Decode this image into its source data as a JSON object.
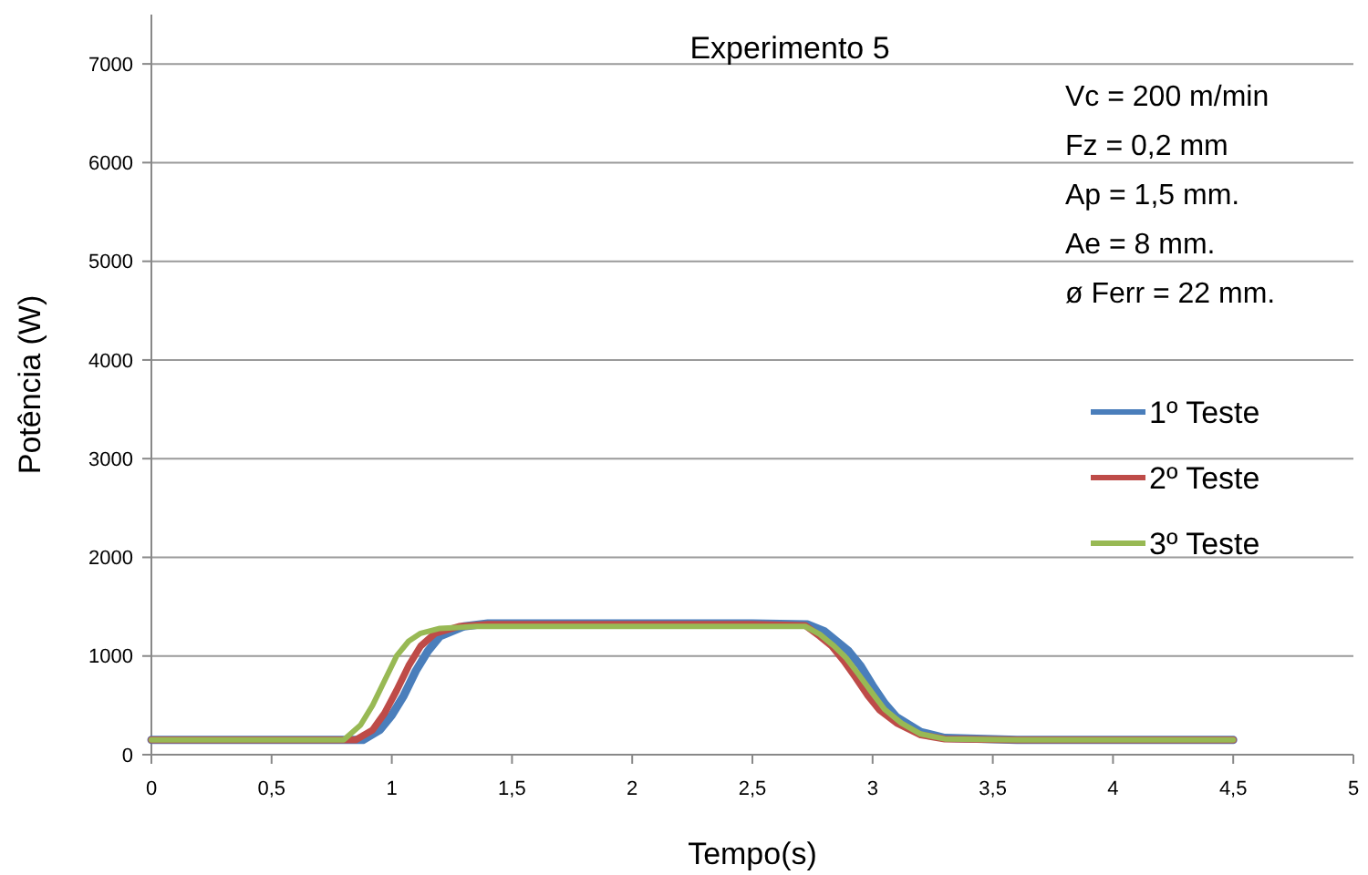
{
  "chart_data": {
    "type": "line",
    "title": "Experimento 5",
    "xlabel": "Tempo(s)",
    "ylabel": "Potência (W)",
    "xlim": [
      0,
      5
    ],
    "xticks": [
      0,
      {
        "value": 0.5,
        "label": "0,5"
      },
      1,
      {
        "value": 1.5,
        "label": "1,5"
      },
      2,
      {
        "value": 2.5,
        "label": "2,5"
      },
      3,
      {
        "value": 3.5,
        "label": "3,5"
      },
      4,
      {
        "value": 4.5,
        "label": "4,5"
      },
      5
    ],
    "ylim": [
      0,
      7500
    ],
    "yticks": [
      0,
      1000,
      2000,
      3000,
      4000,
      5000,
      6000,
      7000
    ],
    "grid": "y",
    "legend": "right",
    "marker": "none",
    "line_style": "solid",
    "annotations": [
      "Vc =  200 m/min",
      "Fz = 0,2 mm",
      "Ap = 1,5 mm.",
      "Ae = 8 mm.",
      "ø Ferr = 22 mm."
    ],
    "series": [
      {
        "name": "1º Teste",
        "color": "#4a7ebb",
        "x": [
          0,
          0.5,
          0.88,
          0.95,
          1.0,
          1.05,
          1.1,
          1.15,
          1.2,
          1.3,
          1.4,
          2.0,
          2.5,
          2.73,
          2.8,
          2.85,
          2.9,
          2.95,
          3.0,
          3.05,
          3.1,
          3.2,
          3.3,
          3.6,
          4.5
        ],
        "values": [
          150,
          150,
          150,
          250,
          400,
          600,
          850,
          1050,
          1200,
          1300,
          1330,
          1330,
          1330,
          1320,
          1250,
          1150,
          1050,
          900,
          700,
          520,
          380,
          230,
          170,
          150,
          150
        ]
      },
      {
        "name": "2º Teste",
        "color": "#be4b48",
        "x": [
          0,
          0.5,
          0.85,
          0.92,
          0.97,
          1.02,
          1.07,
          1.12,
          1.18,
          1.28,
          1.4,
          2.0,
          2.5,
          2.72,
          2.78,
          2.83,
          2.88,
          2.93,
          2.98,
          3.03,
          3.1,
          3.2,
          3.3,
          3.6,
          4.5
        ],
        "values": [
          150,
          150,
          150,
          250,
          420,
          650,
          900,
          1100,
          1230,
          1300,
          1320,
          1320,
          1320,
          1310,
          1200,
          1100,
          950,
          780,
          600,
          450,
          320,
          200,
          160,
          150,
          150
        ]
      },
      {
        "name": "3º Teste",
        "color": "#98b954",
        "x": [
          0,
          0.5,
          0.8,
          0.87,
          0.92,
          0.97,
          1.02,
          1.07,
          1.12,
          1.2,
          1.35,
          2.0,
          2.5,
          2.72,
          2.78,
          2.84,
          2.89,
          2.94,
          3.0,
          3.05,
          3.12,
          3.2,
          3.3,
          3.6,
          4.5
        ],
        "values": [
          150,
          150,
          150,
          300,
          500,
          750,
          1000,
          1150,
          1230,
          1280,
          1300,
          1300,
          1300,
          1300,
          1220,
          1100,
          980,
          820,
          620,
          460,
          320,
          210,
          160,
          150,
          150
        ]
      }
    ]
  }
}
